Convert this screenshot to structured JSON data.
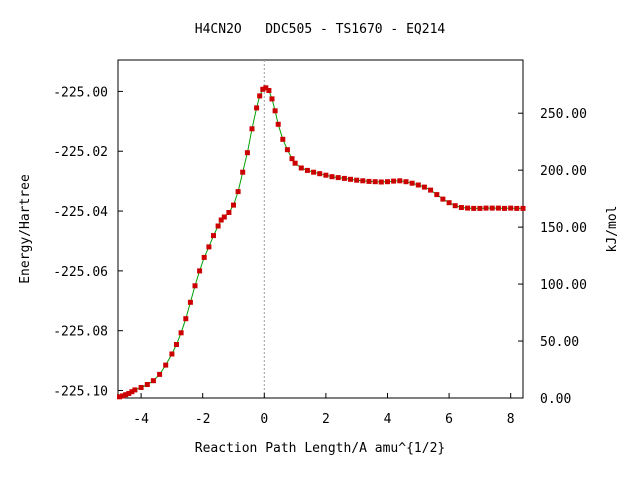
{
  "chart_data": {
    "type": "line",
    "title": "H4CN2O   DDC505 - TS1670 - EQ214",
    "xlabel": "Reaction Path Length/A amu^{1/2}",
    "ylabel": "Energy/Hartree",
    "y2label": "kJ/mol",
    "xlim": [
      -4.75,
      8.4
    ],
    "ylim": [
      -225.1025,
      -224.9895
    ],
    "y2lim": [
      0.0,
      296.7
    ],
    "x_ticks": [
      -4,
      -2,
      0,
      2,
      4,
      6,
      8
    ],
    "x_tick_labels": [
      "-4",
      "-2",
      "0",
      "2",
      "4",
      "6",
      "8"
    ],
    "y_ticks": [
      -225.0,
      -225.02,
      -225.04,
      -225.06,
      -225.08,
      -225.1
    ],
    "y_tick_labels": [
      "-225.00",
      "-225.02",
      "-225.04",
      "-225.06",
      "-225.08",
      "-225.10"
    ],
    "y2_ticks": [
      0,
      50,
      100,
      150,
      200,
      250
    ],
    "y2_tick_labels": [
      "0.00",
      "50.00",
      "100.00",
      "150.00",
      "200.00",
      "250.00"
    ],
    "ts_x": 0.0,
    "grid": false,
    "line_color": "#00a000",
    "marker_color": "#cc0000",
    "ts_line_color": "#999999",
    "series": [
      {
        "x": [
          -4.7,
          -4.6,
          -4.5,
          -4.4,
          -4.3,
          -4.2,
          -4.0,
          -3.8,
          -3.6,
          -3.4,
          -3.2,
          -3.0,
          -2.85,
          -2.7,
          -2.55,
          -2.4,
          -2.25,
          -2.1,
          -1.95,
          -1.8,
          -1.65,
          -1.5,
          -1.4,
          -1.3,
          -1.15,
          -1.0,
          -0.85,
          -0.7,
          -0.55,
          -0.4,
          -0.25,
          -0.15,
          -0.05,
          0.05,
          0.15,
          0.25,
          0.35,
          0.45,
          0.6,
          0.75,
          0.9,
          1.0,
          1.2,
          1.4,
          1.6,
          1.8,
          2.0,
          2.2,
          2.4,
          2.6,
          2.8,
          3.0,
          3.2,
          3.4,
          3.6,
          3.8,
          4.0,
          4.2,
          4.4,
          4.6,
          4.8,
          5.0,
          5.2,
          5.4,
          5.6,
          5.8,
          6.0,
          6.2,
          6.4,
          6.6,
          6.8,
          7.0,
          7.2,
          7.4,
          7.6,
          7.8,
          8.0,
          8.2,
          8.4
        ],
        "y": [
          -225.1021,
          -225.1018,
          -225.1014,
          -225.101,
          -225.1004,
          -225.0998,
          -225.099,
          -225.098,
          -225.0967,
          -225.0946,
          -225.0915,
          -225.0878,
          -225.0846,
          -225.0807,
          -225.076,
          -225.0705,
          -225.065,
          -225.06,
          -225.0555,
          -225.052,
          -225.0482,
          -225.045,
          -225.043,
          -225.042,
          -225.0405,
          -225.038,
          -225.0335,
          -225.027,
          -225.0205,
          -225.0125,
          -225.0055,
          -225.0015,
          -224.9993,
          -224.9988,
          -224.9997,
          -225.0025,
          -225.0065,
          -225.011,
          -225.016,
          -225.0195,
          -225.0225,
          -225.024,
          -225.0256,
          -225.0264,
          -225.027,
          -225.0275,
          -225.028,
          -225.0285,
          -225.0288,
          -225.0291,
          -225.0294,
          -225.0297,
          -225.0299,
          -225.0301,
          -225.0302,
          -225.0303,
          -225.0302,
          -225.03,
          -225.0299,
          -225.0302,
          -225.0307,
          -225.0313,
          -225.032,
          -225.033,
          -225.0345,
          -225.036,
          -225.0372,
          -225.0382,
          -225.0388,
          -225.039,
          -225.0391,
          -225.0391,
          -225.039,
          -225.039,
          -225.039,
          -225.0391,
          -225.039,
          -225.0391,
          -225.0391
        ]
      }
    ]
  }
}
